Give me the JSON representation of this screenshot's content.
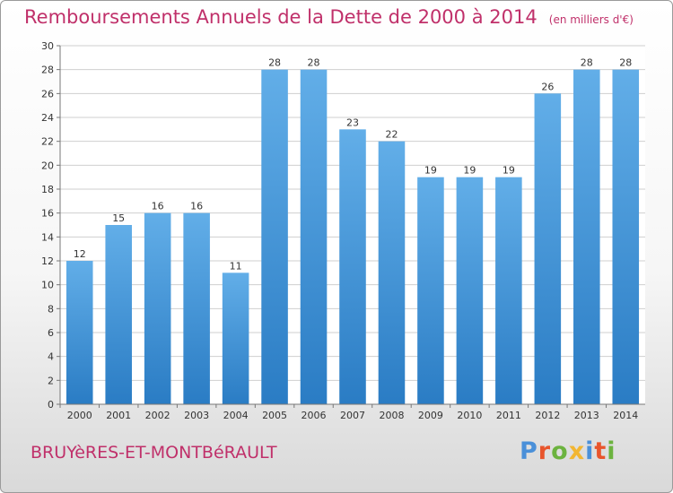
{
  "chart_data": {
    "type": "bar",
    "title": "Remboursements Annuels de la Dette de 2000 à 2014",
    "subtitle": "(en milliers d'€)",
    "categories": [
      "2000",
      "2001",
      "2002",
      "2003",
      "2004",
      "2005",
      "2006",
      "2007",
      "2008",
      "2009",
      "2010",
      "2011",
      "2012",
      "2013",
      "2014"
    ],
    "values": [
      12,
      15,
      16,
      16,
      11,
      28,
      28,
      23,
      22,
      19,
      19,
      19,
      26,
      28,
      28
    ],
    "ylim": [
      0,
      30
    ],
    "yticks": [
      0,
      2,
      4,
      6,
      8,
      10,
      12,
      14,
      16,
      18,
      20,
      22,
      24,
      26,
      28,
      30
    ],
    "grid": true,
    "xlabel": "",
    "ylabel": ""
  },
  "footer": {
    "place": "BRUYèRES-ET-MONTBéRAULT",
    "brand": "Proxiti"
  },
  "colors": {
    "title": "#c0306a",
    "bar_light": "#62aee8",
    "bar_dark": "#2a7cc4",
    "grid": "#cfcfcf",
    "brand_letters": [
      "#4a90d9",
      "#e8552c",
      "#6cb33f",
      "#f2b632",
      "#4a90d9",
      "#e8552c",
      "#6cb33f"
    ]
  }
}
